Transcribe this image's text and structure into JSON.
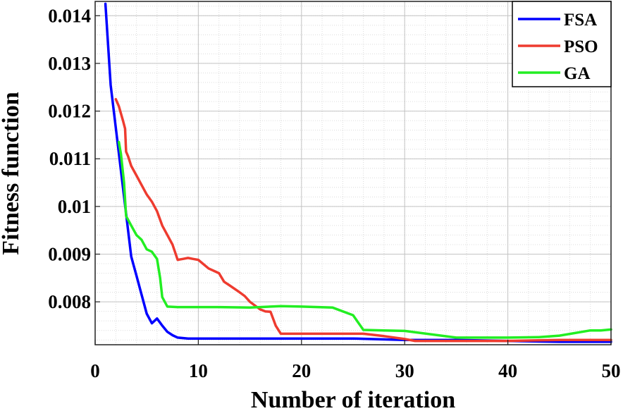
{
  "chart_data": {
    "type": "line",
    "xlabel": "Number of iteration",
    "ylabel": "Fitness function",
    "xlim": [
      0,
      50
    ],
    "ylim": [
      0.0071,
      0.0143
    ],
    "xticks": [
      0,
      10,
      20,
      30,
      40,
      50
    ],
    "xtick_labels": [
      "0",
      "10",
      "20",
      "30",
      "40",
      "50"
    ],
    "yticks": [
      0.008,
      0.009,
      0.01,
      0.011,
      0.012,
      0.013,
      0.014
    ],
    "ytick_labels": [
      "0.008",
      "0.009",
      "0.01",
      "0.011",
      "0.012",
      "0.013",
      "0.014"
    ],
    "grid": true,
    "minor_grid": true,
    "legend_position": "top-right",
    "series": [
      {
        "name": "FSA",
        "color": "#0000ff",
        "x": [
          1,
          1.5,
          2,
          2.5,
          3,
          3.5,
          4,
          4.5,
          5,
          5.5,
          6,
          6.5,
          7,
          7.5,
          8,
          9,
          10,
          15,
          20,
          25,
          30,
          35,
          40,
          45,
          50
        ],
        "y": [
          0.01425,
          0.01255,
          0.01165,
          0.01075,
          0.00985,
          0.00895,
          0.00855,
          0.00815,
          0.00775,
          0.00755,
          0.00765,
          0.0075,
          0.00737,
          0.0073,
          0.00725,
          0.00723,
          0.00723,
          0.00723,
          0.00723,
          0.00723,
          0.0072,
          0.0072,
          0.00718,
          0.00716,
          0.00716
        ]
      },
      {
        "name": "PSO",
        "color": "#ee3b2f",
        "x": [
          2,
          2.3,
          2.7,
          2.9,
          3,
          3.2,
          3.5,
          4,
          4.5,
          5,
          5.5,
          6,
          6.5,
          7,
          7.5,
          8,
          8.5,
          9,
          9.5,
          10,
          11,
          12,
          12.5,
          13,
          14,
          14.5,
          15,
          16,
          16.5,
          17,
          17.5,
          18,
          20,
          26,
          28,
          30,
          31,
          33,
          35,
          40,
          45,
          50
        ],
        "y": [
          0.01225,
          0.0121,
          0.0118,
          0.01163,
          0.01115,
          0.01105,
          0.01085,
          0.01065,
          0.01045,
          0.01025,
          0.0101,
          0.0099,
          0.0096,
          0.0094,
          0.0092,
          0.00888,
          0.0089,
          0.00892,
          0.0089,
          0.00888,
          0.0087,
          0.0086,
          0.00842,
          0.00835,
          0.0082,
          0.00812,
          0.008,
          0.00784,
          0.0078,
          0.00779,
          0.0075,
          0.00733,
          0.00733,
          0.00733,
          0.00728,
          0.00722,
          0.00718,
          0.00718,
          0.00718,
          0.00718,
          0.0072,
          0.0072
        ]
      },
      {
        "name": "GA",
        "color": "#22ee22",
        "x": [
          2.3,
          2.5,
          2.8,
          3,
          3.5,
          4,
          4.5,
          5,
          5.5,
          6,
          6.3,
          6.5,
          7,
          8,
          10,
          12,
          15,
          18,
          20,
          23,
          25,
          26,
          28,
          30,
          35,
          40,
          43,
          45,
          48,
          49,
          50
        ],
        "y": [
          0.01135,
          0.0111,
          0.0105,
          0.0098,
          0.0096,
          0.0094,
          0.0093,
          0.0091,
          0.00905,
          0.0089,
          0.0085,
          0.0081,
          0.0079,
          0.00789,
          0.00789,
          0.00789,
          0.00788,
          0.00791,
          0.0079,
          0.00788,
          0.00772,
          0.00741,
          0.0074,
          0.00739,
          0.00725,
          0.00725,
          0.00726,
          0.00729,
          0.0074,
          0.0074,
          0.00742
        ]
      }
    ]
  }
}
